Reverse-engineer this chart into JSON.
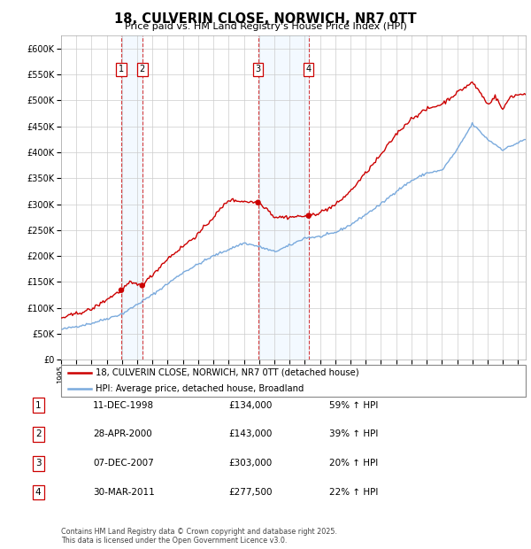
{
  "title": "18, CULVERIN CLOSE, NORWICH, NR7 0TT",
  "subtitle": "Price paid vs. HM Land Registry's House Price Index (HPI)",
  "legend_line1": "18, CULVERIN CLOSE, NORWICH, NR7 0TT (detached house)",
  "legend_line2": "HPI: Average price, detached house, Broadland",
  "transactions": [
    {
      "num": 1,
      "date": "11-DEC-1998",
      "price": 134000,
      "year": 1998.95,
      "hpi_pct": "59% ↑ HPI"
    },
    {
      "num": 2,
      "date": "28-APR-2000",
      "price": 143000,
      "year": 2000.33,
      "hpi_pct": "39% ↑ HPI"
    },
    {
      "num": 3,
      "date": "07-DEC-2007",
      "price": 303000,
      "year": 2007.93,
      "hpi_pct": "20% ↑ HPI"
    },
    {
      "num": 4,
      "date": "30-MAR-2011",
      "price": 277500,
      "year": 2011.25,
      "hpi_pct": "22% ↑ HPI"
    }
  ],
  "yticks": [
    0,
    50000,
    100000,
    150000,
    200000,
    250000,
    300000,
    350000,
    400000,
    450000,
    500000,
    550000,
    600000
  ],
  "xlim": [
    1995.0,
    2025.5
  ],
  "ylim": [
    0,
    625000
  ],
  "red_color": "#cc0000",
  "blue_color": "#7aaadd",
  "shade_color": "#ddeeff",
  "box_color": "#cc0000",
  "footer": "Contains HM Land Registry data © Crown copyright and database right 2025.\nThis data is licensed under the Open Government Licence v3.0.",
  "background_color": "#ffffff",
  "grid_color": "#cccccc"
}
